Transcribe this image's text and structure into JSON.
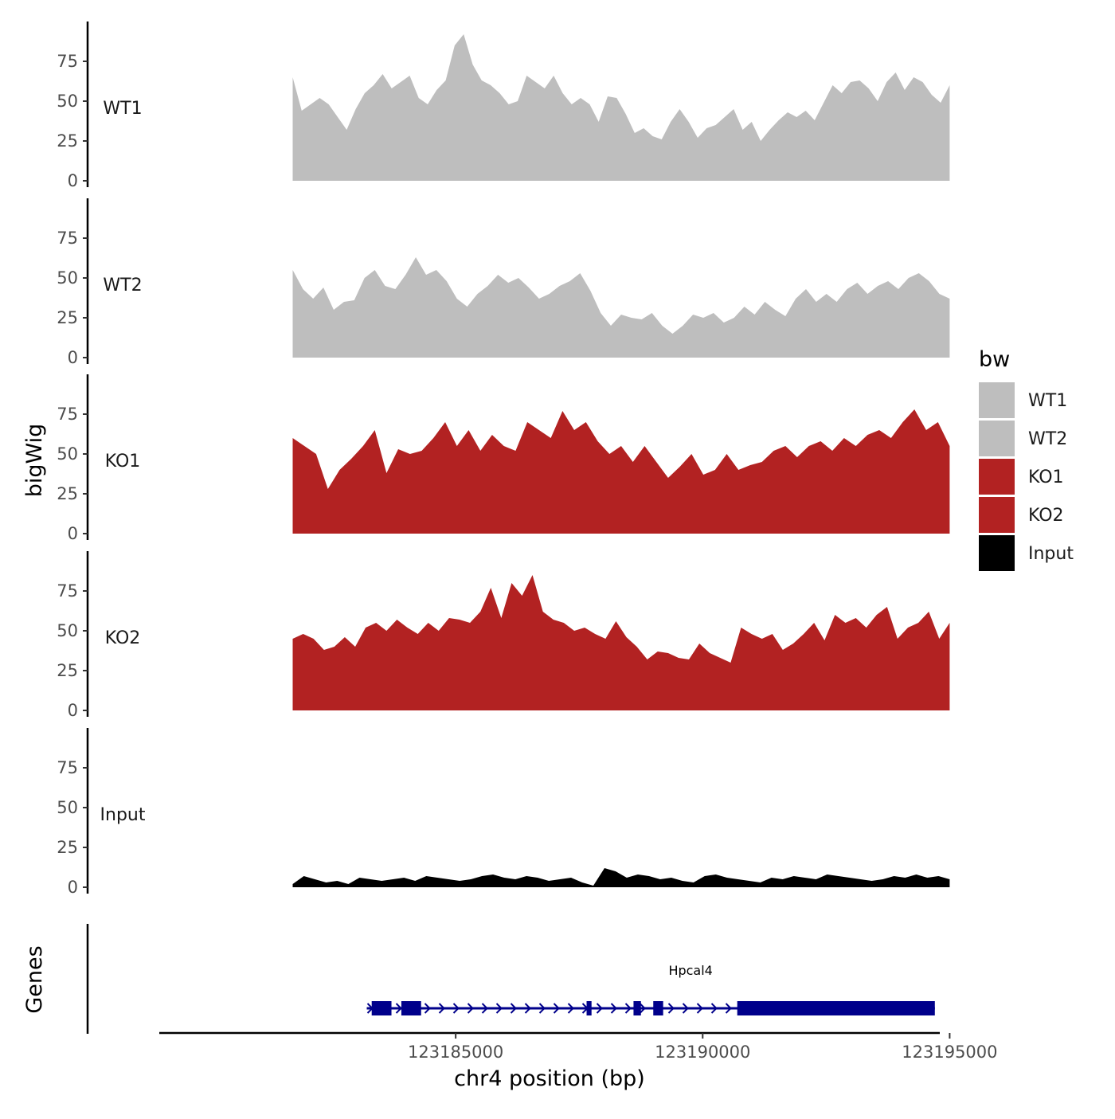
{
  "chart_data": {
    "type": "area",
    "x_axis_title": "chr4 position (bp)",
    "y_axis_title": "bigWig",
    "genes_axis_title": "Genes",
    "xlim": [
      123179000,
      123194800
    ],
    "x_ticks": [
      123185000,
      123190000,
      123195000
    ],
    "x_tick_labels": [
      "123185000",
      "123190000",
      "123195000"
    ],
    "ylim": [
      0,
      98
    ],
    "y_ticks": [
      0,
      25,
      50,
      75
    ],
    "y_tick_labels": [
      "0",
      "25",
      "50",
      "75"
    ],
    "legend": {
      "title": "bw",
      "position": "right",
      "entries": [
        {
          "name": "WT1",
          "color": "#bebebe"
        },
        {
          "name": "WT2",
          "color": "#bebebe"
        },
        {
          "name": "KO1",
          "color": "#b22222"
        },
        {
          "name": "KO2",
          "color": "#b22222"
        },
        {
          "name": "Input",
          "color": "#000000"
        }
      ]
    },
    "track_x_range": [
      123181700,
      123195000
    ],
    "tracks": [
      {
        "name": "WT1",
        "color": "#bebebe",
        "values": [
          65,
          44,
          48,
          52,
          48,
          40,
          32,
          45,
          55,
          60,
          67,
          58,
          62,
          66,
          52,
          48,
          57,
          63,
          85,
          92,
          73,
          63,
          60,
          55,
          48,
          50,
          66,
          62,
          58,
          66,
          55,
          48,
          52,
          48,
          37,
          53,
          52,
          42,
          30,
          33,
          28,
          26,
          37,
          45,
          37,
          27,
          33,
          35,
          40,
          45,
          32,
          37,
          25,
          32,
          38,
          43,
          40,
          44,
          38,
          49,
          60,
          55,
          62,
          63,
          58,
          50,
          62,
          68,
          57,
          65,
          62,
          54,
          49,
          60
        ]
      },
      {
        "name": "WT2",
        "color": "#bebebe",
        "values": [
          55,
          43,
          37,
          44,
          30,
          35,
          36,
          50,
          55,
          45,
          43,
          52,
          63,
          52,
          55,
          48,
          37,
          32,
          40,
          45,
          52,
          47,
          50,
          44,
          37,
          40,
          45,
          48,
          53,
          42,
          28,
          20,
          27,
          25,
          24,
          28,
          20,
          15,
          20,
          27,
          25,
          28,
          22,
          25,
          32,
          27,
          35,
          30,
          26,
          37,
          43,
          35,
          40,
          35,
          43,
          47,
          40,
          45,
          48,
          43,
          50,
          53,
          48,
          40,
          37
        ]
      },
      {
        "name": "KO1",
        "color": "#b22222",
        "values": [
          60,
          55,
          50,
          28,
          40,
          47,
          55,
          65,
          38,
          53,
          50,
          52,
          60,
          70,
          55,
          65,
          52,
          62,
          55,
          52,
          70,
          65,
          60,
          77,
          65,
          70,
          58,
          50,
          55,
          45,
          55,
          45,
          35,
          42,
          50,
          37,
          40,
          50,
          40,
          43,
          45,
          52,
          55,
          48,
          55,
          58,
          52,
          60,
          55,
          62,
          65,
          60,
          70,
          78,
          65,
          70,
          55
        ]
      },
      {
        "name": "KO2",
        "color": "#b22222",
        "values": [
          45,
          48,
          45,
          38,
          40,
          46,
          40,
          52,
          55,
          50,
          57,
          52,
          48,
          55,
          50,
          58,
          57,
          55,
          62,
          77,
          58,
          80,
          72,
          85,
          62,
          57,
          55,
          50,
          52,
          48,
          45,
          56,
          46,
          40,
          32,
          37,
          36,
          33,
          32,
          42,
          36,
          33,
          30,
          52,
          48,
          45,
          48,
          38,
          42,
          48,
          55,
          44,
          60,
          55,
          58,
          52,
          60,
          65,
          45,
          52,
          55,
          62,
          45,
          55
        ]
      },
      {
        "name": "Input",
        "color": "#000000",
        "values": [
          2,
          7,
          5,
          3,
          4,
          2,
          6,
          5,
          4,
          5,
          6,
          4,
          7,
          6,
          5,
          4,
          5,
          7,
          8,
          6,
          5,
          7,
          6,
          4,
          5,
          6,
          3,
          1,
          12,
          10,
          6,
          8,
          7,
          5,
          6,
          4,
          3,
          7,
          8,
          6,
          5,
          4,
          3,
          6,
          5,
          7,
          6,
          5,
          8,
          7,
          6,
          5,
          4,
          5,
          7,
          6,
          8,
          6,
          7,
          5
        ]
      }
    ],
    "gene": {
      "name": "Hpcal4",
      "color": "#00008b",
      "start": 123183200,
      "end": 123194700,
      "strand": "+",
      "exons": [
        [
          123183300,
          123183700
        ],
        [
          123183900,
          123184300
        ],
        [
          123187650,
          123187750
        ],
        [
          123188600,
          123188750
        ],
        [
          123189000,
          123189200
        ],
        [
          123190700,
          123194700
        ]
      ]
    }
  }
}
